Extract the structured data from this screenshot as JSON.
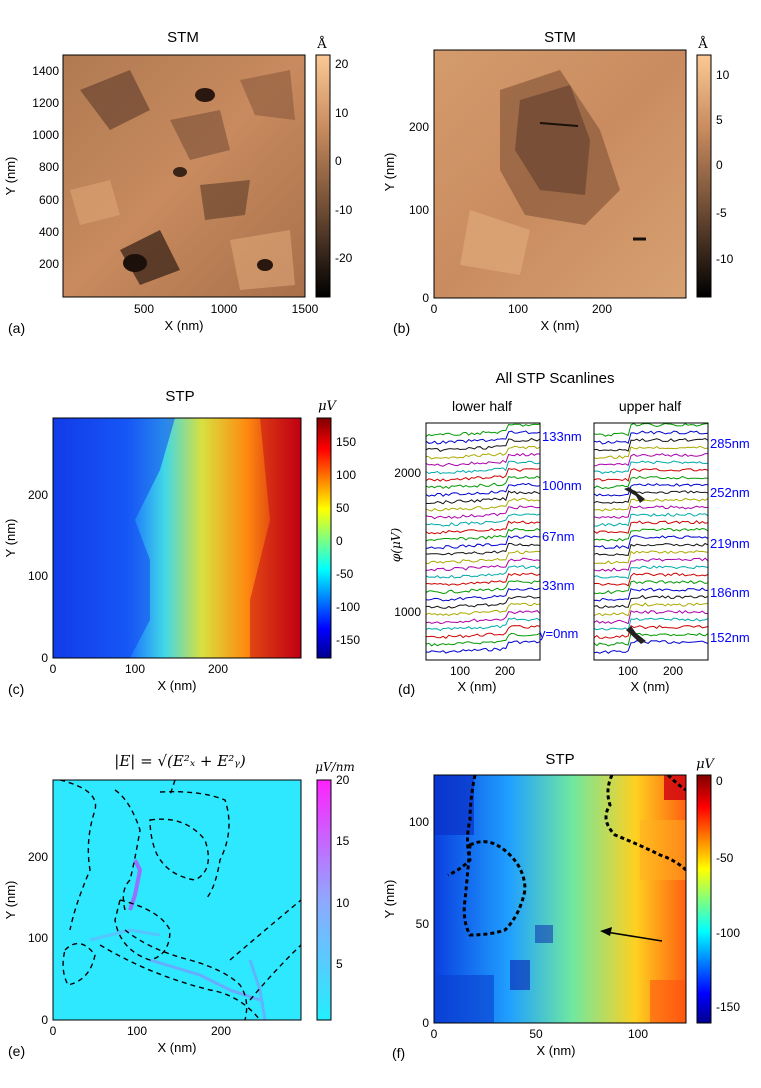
{
  "figure": {
    "panels": {
      "a": {
        "label": "(a)",
        "title": "STM",
        "xlabel": "X (nm)",
        "ylabel": "Y (nm)",
        "xticks": [
          "500",
          "1000",
          "1500"
        ],
        "yticks": [
          "200",
          "400",
          "600",
          "800",
          "1000",
          "1200",
          "1400"
        ],
        "colorbar": {
          "unit": "Å",
          "ticks": [
            "20",
            "10",
            "0",
            "-10",
            "-20"
          ]
        }
      },
      "b": {
        "label": "(b)",
        "title": "STM",
        "xlabel": "X (nm)",
        "ylabel": "Y (nm)",
        "xticks": [
          "0",
          "100",
          "200"
        ],
        "yticks": [
          "0",
          "100",
          "200"
        ],
        "colorbar": {
          "unit": "Å",
          "ticks": [
            "10",
            "5",
            "0",
            "-5",
            "-10"
          ]
        }
      },
      "c": {
        "label": "(c)",
        "title": "STP",
        "xlabel": "X (nm)",
        "ylabel": "Y (nm)",
        "xticks": [
          "0",
          "100",
          "200"
        ],
        "yticks": [
          "0",
          "100",
          "200"
        ],
        "colorbar": {
          "unit": "μV",
          "ticks": [
            "150",
            "100",
            "50",
            "0",
            "-50",
            "-100",
            "-150"
          ]
        }
      },
      "d": {
        "label": "(d)",
        "title": "All STP Scanlines",
        "left_title": "lower half",
        "right_title": "upper half",
        "ylabel": "φ(μV)",
        "yticks": [
          "2000",
          "1000"
        ],
        "xlabel": "X (nm)",
        "xticks": [
          "100",
          "200"
        ],
        "left_labels": [
          "133nm",
          "100nm",
          "67nm",
          "33nm",
          "y=0nm"
        ],
        "right_labels": [
          "285nm",
          "252nm",
          "219nm",
          "186nm",
          "152nm"
        ]
      },
      "e": {
        "label": "(e)",
        "title": "|E| = √(E²ₓ + E²ᵧ)",
        "xlabel": "X (nm)",
        "ylabel": "Y (nm)",
        "xticks": [
          "0",
          "100",
          "200"
        ],
        "yticks": [
          "0",
          "100",
          "200"
        ],
        "colorbar": {
          "unit": "μV/nm",
          "ticks": [
            "20",
            "15",
            "10",
            "5"
          ]
        }
      },
      "f": {
        "label": "(f)",
        "title": "STP",
        "xlabel": "X (nm)",
        "ylabel": "Y (nm)",
        "xticks": [
          "0",
          "50",
          "100"
        ],
        "yticks": [
          "0",
          "50",
          "100"
        ],
        "colorbar": {
          "unit": "μV",
          "ticks": [
            "0",
            "-50",
            "-100",
            "-150"
          ]
        }
      }
    }
  }
}
